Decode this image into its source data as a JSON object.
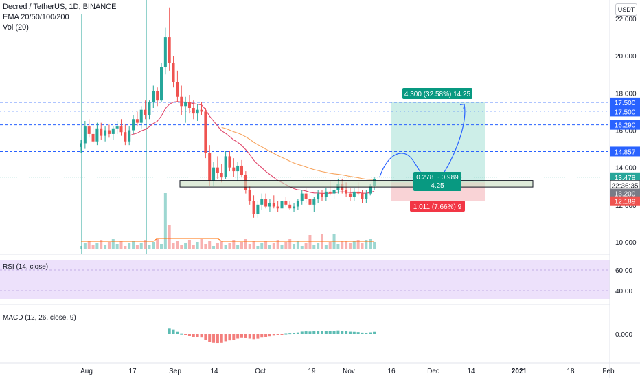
{
  "header": {
    "title": "Decred / TetherUS, 1D, BINANCE",
    "ema": "EMA 20/50/100/200",
    "vol": "Vol (20)",
    "currency": "USDT"
  },
  "colors": {
    "up": "#26a69a",
    "down": "#ef5350",
    "blue_line": "#2962ff",
    "ema20": "#e0456a",
    "ema50": "#f7a35c",
    "rsi": "#7b1fa2",
    "rsi_band": "#ede1fb",
    "macd": "#2196f3",
    "signal": "#ff6d00",
    "target_zone": "#cdeee8",
    "stop_zone": "#f9d3d6",
    "box_fill": "#c9dfc1"
  },
  "price_axis": {
    "ticks": [
      "22.000",
      "20.000",
      "18.000",
      "16.000",
      "14.000",
      "12.000",
      "10.000"
    ],
    "tick_values": [
      22,
      20,
      18,
      16,
      14,
      12,
      10
    ],
    "labels": [
      {
        "text": "17.500",
        "value": 17.5,
        "color": "#2962ff"
      },
      {
        "text": "17.500",
        "value": 17.0,
        "color": "#2962ff"
      },
      {
        "text": "16.290",
        "value": 16.29,
        "color": "#2962ff"
      },
      {
        "text": "14.857",
        "value": 14.857,
        "color": "#2962ff"
      },
      {
        "text": "13.478",
        "value": 13.478,
        "color": "#26a69a"
      },
      {
        "text": "22:36:35",
        "value": 13.05,
        "color": "#ffffff"
      },
      {
        "text": "13.200",
        "value": 12.6,
        "color": "#787b86"
      },
      {
        "text": "12.189",
        "value": 12.189,
        "color": "#ef5350"
      }
    ]
  },
  "x_axis": {
    "labels": [
      "Aug",
      "17",
      "Sep",
      "14",
      "Oct",
      "19",
      "Nov",
      "16",
      "Dec",
      "14",
      "2021",
      "18",
      "Feb"
    ]
  },
  "horizontal_levels": [
    17.5,
    16.29,
    14.857
  ],
  "support_zone": {
    "low": 12.95,
    "high": 13.3
  },
  "position": {
    "entry": 13.2,
    "target": 17.5,
    "stop": 12.189,
    "target_label": "4.300 (32.58%) 14.25",
    "ratio_label": "0.278 ~ 0.989",
    "ratio_sub": "4.25",
    "stop_label": "1.011 (7.66%) 9"
  },
  "rsi": {
    "label": "RSI (14, close)",
    "ticks": [
      "60.00",
      "40.00"
    ]
  },
  "macd": {
    "label": "MACD (12, 26, close, 9)",
    "tick": "0.000"
  },
  "chart_data": {
    "type": "candlestick",
    "title": "Decred / TetherUS, 1D, BINANCE",
    "ylim": [
      9.6,
      22.6
    ],
    "candles": [
      [
        15.1,
        15.5,
        14.8,
        15.3
      ],
      [
        15.3,
        16.5,
        15.0,
        16.2
      ],
      [
        16.2,
        16.6,
        15.6,
        15.8
      ],
      [
        15.8,
        16.2,
        15.3,
        15.4
      ],
      [
        15.4,
        16.4,
        15.2,
        16.1
      ],
      [
        16.1,
        16.4,
        15.5,
        15.7
      ],
      [
        15.7,
        16.2,
        15.4,
        16.0
      ],
      [
        16.0,
        16.3,
        15.6,
        15.8
      ],
      [
        15.8,
        16.2,
        15.5,
        16.1
      ],
      [
        16.1,
        16.5,
        15.8,
        16.2
      ],
      [
        16.2,
        16.6,
        15.7,
        15.9
      ],
      [
        15.9,
        16.3,
        15.2,
        15.4
      ],
      [
        15.4,
        16.2,
        15.2,
        16.0
      ],
      [
        16.0,
        16.8,
        15.8,
        16.6
      ],
      [
        16.6,
        17.0,
        16.2,
        16.4
      ],
      [
        16.4,
        17.3,
        16.1,
        17.1
      ],
      [
        17.1,
        17.6,
        16.6,
        16.8
      ],
      [
        16.8,
        17.6,
        16.6,
        17.5
      ],
      [
        17.5,
        18.4,
        17.2,
        18.1
      ],
      [
        18.1,
        18.3,
        17.3,
        17.6
      ],
      [
        17.6,
        19.6,
        17.5,
        19.4
      ],
      [
        19.4,
        21.5,
        19.0,
        21.0
      ],
      [
        21.0,
        22.6,
        19.2,
        19.6
      ],
      [
        19.6,
        20.0,
        18.3,
        18.6
      ],
      [
        18.6,
        19.2,
        17.5,
        17.8
      ],
      [
        17.8,
        18.4,
        16.8,
        17.3
      ],
      [
        17.3,
        17.8,
        16.4,
        17.5
      ],
      [
        17.5,
        17.9,
        16.9,
        17.2
      ],
      [
        17.2,
        17.6,
        16.6,
        16.9
      ],
      [
        16.9,
        17.4,
        16.5,
        17.1
      ],
      [
        17.1,
        17.5,
        16.8,
        17.0
      ],
      [
        17.0,
        17.2,
        14.5,
        14.8
      ],
      [
        14.8,
        15.2,
        13.0,
        13.3
      ],
      [
        13.3,
        14.3,
        13.0,
        14.0
      ],
      [
        14.0,
        14.6,
        13.4,
        13.7
      ],
      [
        13.7,
        14.2,
        13.2,
        13.5
      ],
      [
        13.5,
        14.9,
        13.4,
        14.6
      ],
      [
        14.6,
        14.9,
        13.8,
        14.0
      ],
      [
        14.0,
        14.5,
        13.5,
        13.8
      ],
      [
        13.8,
        14.3,
        13.3,
        14.1
      ],
      [
        14.1,
        14.4,
        13.5,
        13.6
      ],
      [
        13.6,
        13.8,
        12.6,
        12.8
      ],
      [
        12.8,
        13.0,
        12.0,
        12.2
      ],
      [
        12.2,
        12.5,
        11.3,
        11.5
      ],
      [
        11.5,
        12.2,
        11.3,
        12.0
      ],
      [
        12.0,
        12.6,
        11.7,
        12.3
      ],
      [
        12.3,
        12.6,
        11.8,
        11.9
      ],
      [
        11.9,
        12.3,
        11.6,
        12.1
      ],
      [
        12.1,
        12.5,
        11.8,
        11.9
      ],
      [
        11.9,
        12.2,
        11.6,
        11.8
      ],
      [
        11.8,
        12.3,
        11.7,
        12.2
      ],
      [
        12.2,
        12.4,
        11.9,
        12.0
      ],
      [
        12.0,
        12.2,
        11.7,
        11.8
      ],
      [
        11.8,
        12.1,
        11.6,
        11.9
      ],
      [
        11.9,
        12.3,
        11.7,
        12.2
      ],
      [
        12.2,
        12.8,
        12.0,
        12.6
      ],
      [
        12.6,
        12.9,
        12.1,
        12.3
      ],
      [
        12.3,
        12.6,
        11.9,
        12.0
      ],
      [
        12.0,
        12.4,
        11.6,
        12.3
      ],
      [
        12.3,
        12.8,
        12.1,
        12.6
      ],
      [
        12.6,
        12.8,
        12.2,
        12.4
      ],
      [
        12.4,
        12.9,
        12.2,
        12.7
      ],
      [
        12.7,
        13.3,
        12.5,
        12.6
      ],
      [
        12.6,
        13.0,
        12.3,
        12.8
      ],
      [
        12.8,
        13.4,
        12.6,
        13.1
      ],
      [
        13.1,
        13.4,
        12.6,
        12.8
      ],
      [
        12.8,
        13.2,
        12.4,
        12.6
      ],
      [
        12.6,
        12.9,
        12.2,
        12.4
      ],
      [
        12.4,
        12.9,
        12.2,
        12.7
      ],
      [
        12.7,
        13.2,
        12.5,
        12.6
      ],
      [
        12.6,
        12.8,
        12.1,
        12.3
      ],
      [
        12.3,
        12.8,
        12.1,
        12.6
      ],
      [
        12.6,
        13.1,
        12.5,
        13.0
      ],
      [
        13.0,
        13.5,
        12.8,
        13.4
      ]
    ]
  }
}
